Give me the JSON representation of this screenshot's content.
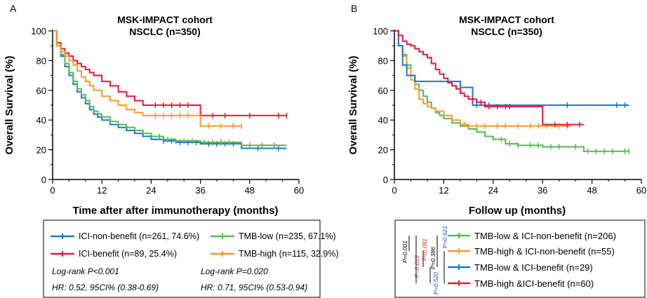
{
  "panels": {
    "A": {
      "letter": "A",
      "title": [
        "MSK-IMPACT cohort",
        "NSCLC (n=350)"
      ],
      "legend": {
        "entries": [
          {
            "label": "ICI-non-benefit (n=261, 74.6%)",
            "color": "#1f77c4"
          },
          {
            "label": "TMB-low (n=235, 67.1%)",
            "color": "#55b955"
          },
          {
            "label": "ICI-benefit (n=89, 25.4%)",
            "color": "#e31a3d"
          },
          {
            "label": "TMB-high (n=115, 32.9%)",
            "color": "#f59a2b"
          }
        ],
        "stats": [
          "Log-rank P<0.001",
          "Log-rank P=0.020",
          "HR: 0.52, 95CI% (0.38-0.69)",
          "HR: 0.71, 95CI% (0.53-0.94)"
        ]
      }
    },
    "B": {
      "letter": "B",
      "title": [
        "MSK-IMPACT cohort",
        "NSCLC (n=350)"
      ],
      "legend": {
        "entries": [
          {
            "label": "TMB-low & ICI-non-benefit (n=206)",
            "color": "#55b955"
          },
          {
            "label": "TMB-high & ICI-non-benefit (n=55)",
            "color": "#f59a2b"
          },
          {
            "label": "TMB-low & ICI-benefit (n=29)",
            "color": "#1f77c4"
          },
          {
            "label": "TMB-high &ICI-benefit (n=60)",
            "color": "#e31a3d"
          }
        ],
        "pvalues": [
          {
            "label": "P=0.001",
            "color": "#000000"
          },
          {
            "label": "P=0.013",
            "color": "#c0392b"
          },
          {
            "label": "P=0.081",
            "color": "#c0392b"
          },
          {
            "label": "P=0.520",
            "color": "#1f4fb4"
          },
          {
            "label": "P=0.386",
            "color": "#000000"
          },
          {
            "label": "P=0.621",
            "color": "#1f4fb4"
          }
        ]
      }
    }
  },
  "chart_data": [
    {
      "type": "line",
      "subtype": "kaplan-meier",
      "title": "MSK-IMPACT cohort NSCLC (n=350)",
      "xlabel": "Time after after immunotherapy (months)",
      "ylabel": "Overall Survival (%)",
      "xlim": [
        0,
        60
      ],
      "ylim": [
        0,
        100
      ],
      "xticks": [
        0,
        12,
        24,
        36,
        48,
        60
      ],
      "yticks": [
        0,
        20,
        40,
        60,
        80,
        100
      ],
      "series": [
        {
          "name": "ICI-non-benefit (n=261, 74.6%)",
          "color": "#1f77c4",
          "x": [
            0,
            1,
            2,
            3,
            4,
            5,
            6,
            7,
            8,
            9,
            10,
            11,
            12,
            14,
            16,
            18,
            20,
            22,
            24,
            27,
            30,
            36,
            40,
            46,
            57
          ],
          "y": [
            100,
            90,
            83,
            76,
            70,
            64,
            59,
            55,
            51,
            47,
            44,
            42,
            40,
            37,
            35,
            33,
            31,
            29,
            27,
            26,
            25,
            24,
            24,
            21,
            21
          ],
          "censor_x": [
            27,
            29,
            31,
            33,
            35,
            38,
            40,
            42,
            44,
            50,
            55
          ]
        },
        {
          "name": "TMB-low (n=235, 67.1%)",
          "color": "#55b955",
          "x": [
            0,
            1,
            2,
            3,
            4,
            5,
            6,
            7,
            8,
            9,
            10,
            11,
            12,
            14,
            16,
            18,
            20,
            22,
            24,
            27,
            30,
            36,
            40,
            46,
            57
          ],
          "y": [
            100,
            90,
            84,
            78,
            72,
            66,
            61,
            57,
            53,
            49,
            46,
            44,
            42,
            39,
            37,
            35,
            33,
            31,
            29,
            27,
            26,
            25,
            25,
            23,
            23
          ],
          "censor_x": [
            26,
            28,
            30,
            32,
            34,
            37,
            39,
            41,
            43,
            48,
            51,
            54
          ]
        },
        {
          "name": "ICI-benefit (n=89, 25.4%)",
          "color": "#e31a3d",
          "x": [
            0,
            1,
            2,
            3,
            4,
            5,
            6,
            7,
            8,
            9,
            10,
            12,
            14,
            16,
            18,
            20,
            22,
            24,
            36,
            57
          ],
          "y": [
            100,
            92,
            88,
            85,
            83,
            80,
            78,
            76,
            74,
            72,
            70,
            66,
            63,
            59,
            56,
            53,
            50,
            50,
            43,
            43
          ],
          "censor_x": [
            25,
            27,
            29,
            31,
            33,
            39,
            42,
            48,
            55,
            57
          ]
        },
        {
          "name": "TMB-high (n=115, 32.9%)",
          "color": "#f59a2b",
          "x": [
            0,
            1,
            2,
            3,
            4,
            5,
            6,
            7,
            8,
            9,
            10,
            12,
            14,
            16,
            18,
            20,
            22,
            24,
            36,
            46
          ],
          "y": [
            100,
            90,
            86,
            83,
            80,
            77,
            73,
            69,
            66,
            63,
            60,
            56,
            53,
            50,
            47,
            45,
            43,
            43,
            36,
            36
          ],
          "censor_x": [
            25,
            27,
            29,
            31,
            33,
            38,
            41,
            44,
            46
          ]
        }
      ]
    },
    {
      "type": "line",
      "subtype": "kaplan-meier",
      "title": "MSK-IMPACT cohort NSCLC (n=350)",
      "xlabel": "Follow up (months)",
      "ylabel": "Overall Survival (%)",
      "xlim": [
        0,
        60
      ],
      "ylim": [
        0,
        100
      ],
      "xticks": [
        0,
        12,
        24,
        36,
        48,
        60
      ],
      "yticks": [
        0,
        20,
        40,
        60,
        80,
        100
      ],
      "series": [
        {
          "name": "TMB-low & ICI-non-benefit (n=206)",
          "color": "#55b955",
          "x": [
            0,
            1,
            2,
            3,
            4,
            5,
            6,
            7,
            8,
            9,
            10,
            11,
            12,
            14,
            16,
            18,
            20,
            22,
            24,
            27,
            30,
            36,
            40,
            46,
            57
          ],
          "y": [
            100,
            90,
            84,
            77,
            70,
            64,
            60,
            56,
            52,
            48,
            45,
            43,
            41,
            38,
            36,
            34,
            32,
            29,
            27,
            24,
            23,
            22,
            22,
            19,
            19
          ],
          "censor_x": [
            26,
            28,
            30,
            33,
            35,
            38,
            40,
            44,
            47,
            49,
            51,
            53,
            56,
            57
          ]
        },
        {
          "name": "TMB-high & ICI-non-benefit (n=55)",
          "color": "#f59a2b",
          "x": [
            0,
            1,
            2,
            3,
            4,
            5,
            6,
            7,
            8,
            9,
            10,
            12,
            14,
            16,
            18,
            43
          ],
          "y": [
            100,
            90,
            83,
            75,
            67,
            61,
            54,
            51,
            49,
            48,
            46,
            43,
            40,
            37,
            36,
            36
          ],
          "censor_x": [
            17,
            20,
            22,
            25,
            27,
            30,
            33,
            35,
            37,
            40,
            42
          ]
        },
        {
          "name": "TMB-low & ICI-benefit (n=29)",
          "color": "#1f77c4",
          "x": [
            0,
            1,
            2,
            3,
            5,
            8,
            12,
            16,
            19,
            57
          ],
          "y": [
            100,
            90,
            77,
            70,
            66,
            66,
            66,
            62,
            50,
            50
          ],
          "censor_x": [
            20,
            23,
            42,
            54,
            56
          ]
        },
        {
          "name": "TMB-high &ICI-benefit (n=60)",
          "color": "#e31a3d",
          "x": [
            0,
            1,
            2,
            3,
            4,
            5,
            6,
            7,
            8,
            9,
            10,
            11,
            12,
            13,
            14,
            15,
            16,
            17,
            18,
            20,
            22,
            36,
            38,
            46
          ],
          "y": [
            100,
            97,
            93,
            91,
            90,
            88,
            86,
            84,
            82,
            78,
            74,
            71,
            68,
            65,
            63,
            61,
            58,
            56,
            54,
            52,
            49,
            37,
            37,
            37
          ],
          "censor_x": [
            19,
            21,
            23,
            25,
            27,
            28,
            39,
            42,
            45
          ]
        }
      ]
    }
  ]
}
